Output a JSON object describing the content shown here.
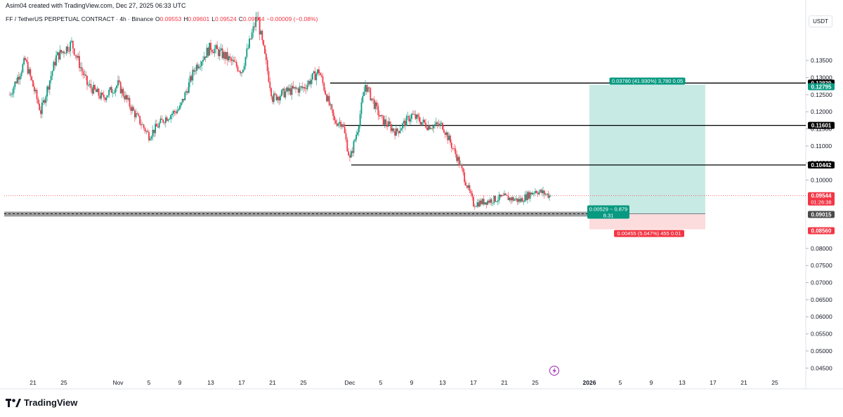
{
  "header": {
    "credit": "Asim04 created with TradingView.com, Dec 27, 2025 06:33 UTC",
    "symbol": "FF / TetherUS PERPETUAL CONTRACT · 4h · Binance",
    "open_label": "O",
    "open": "0.09553",
    "high_label": "H",
    "high": "0.09601",
    "low_label": "L",
    "low": "0.09524",
    "close_label": "C",
    "close": "0.09544",
    "change": "−0.00009 (−0.08%)"
  },
  "currency": "USDT",
  "brand": {
    "name": "TradingView"
  },
  "colors": {
    "up": "#089981",
    "down": "#f23645",
    "profit_zone": "#c8eae4",
    "loss_zone": "#fcdcdc",
    "support_band": "#9e9e9e",
    "level_line": "#000000"
  },
  "chart_data": {
    "type": "candlestick",
    "timeframe": "4h",
    "ylim": [
      0.043,
      0.149
    ],
    "y_ticks": [
      "0.13500",
      "0.13000",
      "0.12500",
      "0.12000",
      "0.11500",
      "0.11000",
      "0.10500",
      "0.10000",
      "0.08000",
      "0.07500",
      "0.07000",
      "0.06500",
      "0.06000",
      "0.05500",
      "0.05000",
      "0.04500"
    ],
    "x_ticks": [
      "21",
      "25",
      "Nov",
      "5",
      "9",
      "13",
      "17",
      "21",
      "25",
      "Dec",
      "5",
      "9",
      "13",
      "17",
      "21",
      "25",
      "2026",
      "5",
      "9",
      "13",
      "17",
      "21",
      "25"
    ],
    "price_path": [
      [
        "Oct 18",
        0.125
      ],
      [
        "Oct 20",
        0.135
      ],
      [
        "Oct 22",
        0.12
      ],
      [
        "Oct 24",
        0.136
      ],
      [
        "Oct 26",
        0.14
      ],
      [
        "Oct 28",
        0.128
      ],
      [
        "Oct 30",
        0.124
      ],
      [
        "Nov 1",
        0.128
      ],
      [
        "Nov 3",
        0.12
      ],
      [
        "Nov 5",
        0.113
      ],
      [
        "Nov 7",
        0.118
      ],
      [
        "Nov 9",
        0.121
      ],
      [
        "Nov 11",
        0.133
      ],
      [
        "Nov 13",
        0.139
      ],
      [
        "Nov 15",
        0.136
      ],
      [
        "Nov 17",
        0.132
      ],
      [
        "Nov 19",
        0.148
      ],
      [
        "Nov 21",
        0.124
      ],
      [
        "Nov 23",
        0.126
      ],
      [
        "Nov 25",
        0.127
      ],
      [
        "Nov 27",
        0.132
      ],
      [
        "Nov 29",
        0.117
      ],
      [
        "Nov 30",
        0.117
      ],
      [
        "Dec 1",
        0.106
      ],
      [
        "Dec 2",
        0.115
      ],
      [
        "Dec 3",
        0.128
      ],
      [
        "Dec 5",
        0.118
      ],
      [
        "Dec 7",
        0.114
      ],
      [
        "Dec 9",
        0.119
      ],
      [
        "Dec 11",
        0.116
      ],
      [
        "Dec 13",
        0.116
      ],
      [
        "Dec 15",
        0.106
      ],
      [
        "Dec 17",
        0.093
      ],
      [
        "Dec 19",
        0.094
      ],
      [
        "Dec 21",
        0.095
      ],
      [
        "Dec 23",
        0.094
      ],
      [
        "Dec 25",
        0.097
      ],
      [
        "Dec 27",
        0.0954
      ]
    ],
    "levels": [
      {
        "price": 0.12839,
        "label": "0.12839"
      },
      {
        "price": 0.11601,
        "label": "0.11601"
      },
      {
        "price": 0.10442,
        "label": "0.10442"
      }
    ],
    "support_zone": {
      "price": 0.09015
    },
    "current_price": {
      "value": 0.09544,
      "label": "0.09544",
      "countdown": "01:26:38"
    },
    "long_position": {
      "entry": {
        "price": 0.09015,
        "label": "0.09015"
      },
      "target": {
        "price": 0.12795,
        "label": "0.12795"
      },
      "stop": {
        "price": 0.0856,
        "label": "0.08560"
      },
      "from": "Jan 1",
      "to": "Jan 16",
      "target_info": "0.03780 (41.930%) 3,780 0.05",
      "entry_info_1": "0.00529 ~ 0.879",
      "entry_info_2": "8.31",
      "stop_info": "0.00455 (5.047%) 455 0.01"
    }
  }
}
